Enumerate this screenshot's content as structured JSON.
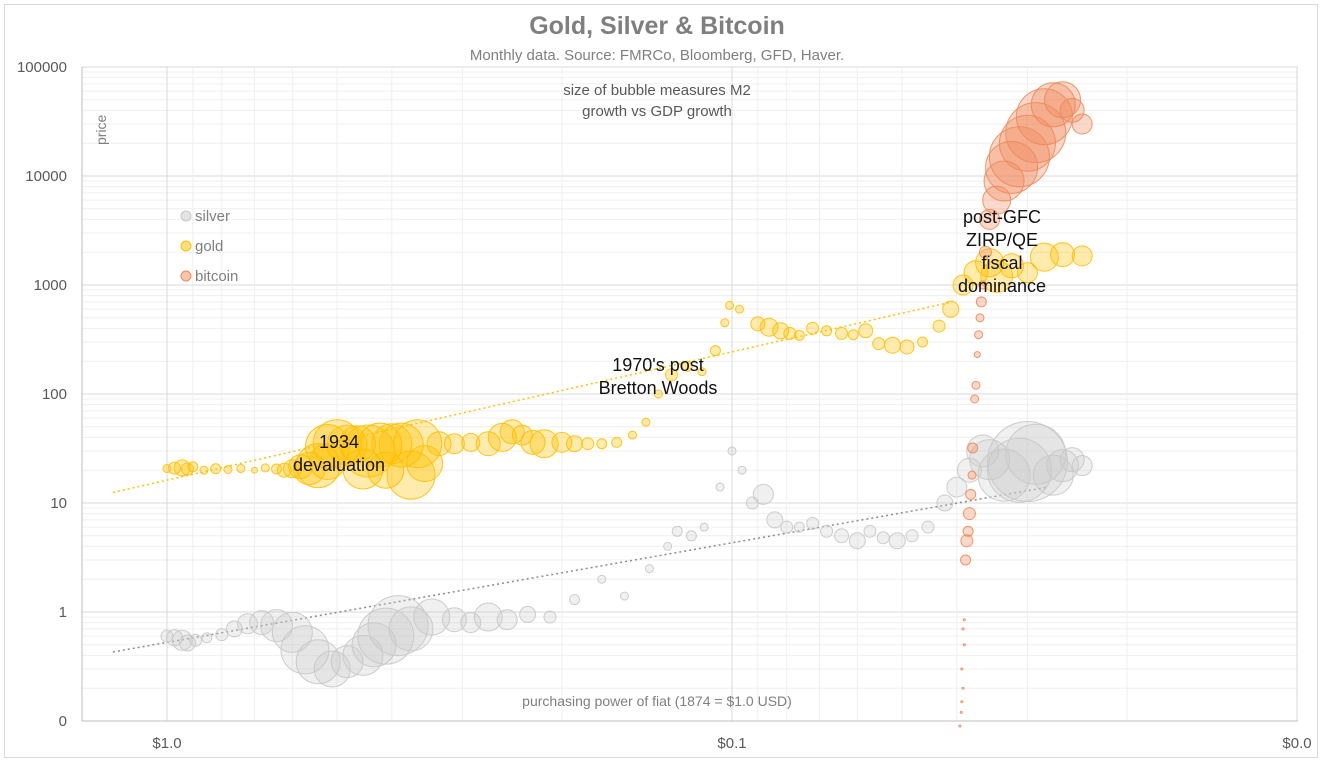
{
  "chart_data": {
    "type": "scatter",
    "title": "Gold, Silver & Bitcoin",
    "subtitle": "Monthly data.  Source: FMRCo, Bloomberg, GFD, Haver.",
    "xlabel": "purchasing power of fiat (1874 = $1.0 USD)",
    "ylabel": "price",
    "x_scale": "log-reversed",
    "y_scale": "log",
    "x_ticks": [
      "$1.0",
      "$0.1",
      "$0.0"
    ],
    "y_ticks": [
      "100000",
      "10000",
      "1000",
      "100",
      "10",
      "1",
      "0"
    ],
    "bubble_note": [
      "size of bubble measures M2",
      "growth vs GDP growth"
    ],
    "legend": [
      {
        "name": "silver",
        "color": "#c8c8c8"
      },
      {
        "name": "gold",
        "color": "#ffc000"
      },
      {
        "name": "bitcoin",
        "color": "#f08a5a"
      }
    ],
    "annotations": [
      {
        "lines": [
          "1934",
          "devaluation"
        ]
      },
      {
        "lines": [
          "1970's post",
          "Bretton Woods"
        ]
      },
      {
        "lines": [
          "post-GFC",
          "ZIRP/QE",
          "fiscal",
          "dominance"
        ]
      }
    ],
    "series": [
      {
        "name": "gold",
        "color": "#ffc000",
        "points": [
          [
            1.0,
            20.7,
            4
          ],
          [
            0.97,
            20.9,
            6
          ],
          [
            0.94,
            21.0,
            8
          ],
          [
            0.92,
            20.5,
            6
          ],
          [
            0.9,
            21.5,
            5
          ],
          [
            0.86,
            20.0,
            4
          ],
          [
            0.82,
            20.6,
            5
          ],
          [
            0.78,
            20.3,
            4
          ],
          [
            0.74,
            20.7,
            4
          ],
          [
            0.7,
            20.0,
            3
          ],
          [
            0.67,
            21.0,
            4
          ],
          [
            0.64,
            20.5,
            5
          ],
          [
            0.62,
            20.0,
            7
          ],
          [
            0.6,
            20.6,
            9
          ],
          [
            0.58,
            21.5,
            12
          ],
          [
            0.56,
            20.7,
            16
          ],
          [
            0.54,
            22.0,
            22
          ],
          [
            0.52,
            24.0,
            18
          ],
          [
            0.52,
            33.0,
            22
          ],
          [
            0.5,
            35.0,
            24
          ],
          [
            0.48,
            34.0,
            20
          ],
          [
            0.46,
            35.0,
            18
          ],
          [
            0.45,
            20.5,
            20
          ],
          [
            0.44,
            30.0,
            26
          ],
          [
            0.42,
            34.0,
            22
          ],
          [
            0.41,
            20.0,
            18
          ],
          [
            0.4,
            35.0,
            20
          ],
          [
            0.385,
            34.0,
            22
          ],
          [
            0.37,
            18.0,
            24
          ],
          [
            0.36,
            35.0,
            24
          ],
          [
            0.35,
            23.0,
            18
          ],
          [
            0.33,
            35.0,
            12
          ],
          [
            0.31,
            35.0,
            10
          ],
          [
            0.29,
            36.0,
            9
          ],
          [
            0.27,
            35.0,
            12
          ],
          [
            0.255,
            40.0,
            14
          ],
          [
            0.245,
            45.0,
            12
          ],
          [
            0.235,
            42.0,
            10
          ],
          [
            0.225,
            36.0,
            12
          ],
          [
            0.215,
            35.0,
            14
          ],
          [
            0.2,
            36.0,
            10
          ],
          [
            0.19,
            35.0,
            8
          ],
          [
            0.18,
            35.0,
            6
          ],
          [
            0.17,
            35.0,
            5
          ],
          [
            0.16,
            36.0,
            5
          ],
          [
            0.15,
            42.0,
            4
          ],
          [
            0.142,
            55.0,
            4
          ],
          [
            0.135,
            100.0,
            4
          ],
          [
            0.128,
            150.0,
            6
          ],
          [
            0.12,
            180.0,
            5
          ],
          [
            0.113,
            160.0,
            4
          ],
          [
            0.107,
            250.0,
            5
          ],
          [
            0.103,
            450.0,
            4
          ],
          [
            0.101,
            650.0,
            4
          ],
          [
            0.097,
            600.0,
            4
          ],
          [
            0.09,
            440.0,
            7
          ],
          [
            0.086,
            410.0,
            9
          ],
          [
            0.082,
            380.0,
            8
          ],
          [
            0.079,
            360.0,
            6
          ],
          [
            0.076,
            345.0,
            5
          ],
          [
            0.072,
            400.0,
            6
          ],
          [
            0.068,
            380.0,
            5
          ],
          [
            0.064,
            360.0,
            6
          ],
          [
            0.061,
            350.0,
            5
          ],
          [
            0.058,
            380.0,
            7
          ],
          [
            0.055,
            290.0,
            6
          ],
          [
            0.052,
            280.0,
            8
          ],
          [
            0.049,
            270.0,
            7
          ],
          [
            0.046,
            300.0,
            5
          ],
          [
            0.043,
            420.0,
            6
          ],
          [
            0.041,
            600.0,
            8
          ],
          [
            0.039,
            1000.0,
            10
          ],
          [
            0.037,
            1300.0,
            12
          ],
          [
            0.035,
            1600.0,
            14
          ],
          [
            0.034,
            1200.0,
            16
          ],
          [
            0.032,
            1500.0,
            12
          ],
          [
            0.03,
            1300.0,
            10
          ],
          [
            0.028,
            1800.0,
            14
          ],
          [
            0.026,
            1900.0,
            12
          ],
          [
            0.024,
            1850.0,
            10
          ]
        ]
      },
      {
        "name": "silver",
        "color": "#c8c8c8",
        "points": [
          [
            1.0,
            0.6,
            6
          ],
          [
            0.97,
            0.58,
            8
          ],
          [
            0.94,
            0.55,
            10
          ],
          [
            0.92,
            0.52,
            8
          ],
          [
            0.89,
            0.55,
            6
          ],
          [
            0.85,
            0.58,
            5
          ],
          [
            0.8,
            0.62,
            6
          ],
          [
            0.76,
            0.7,
            8
          ],
          [
            0.72,
            0.78,
            10
          ],
          [
            0.68,
            0.8,
            12
          ],
          [
            0.64,
            0.75,
            16
          ],
          [
            0.6,
            0.65,
            20
          ],
          [
            0.57,
            0.45,
            24
          ],
          [
            0.54,
            0.35,
            22
          ],
          [
            0.51,
            0.3,
            18
          ],
          [
            0.48,
            0.35,
            16
          ],
          [
            0.45,
            0.4,
            20
          ],
          [
            0.43,
            0.5,
            22
          ],
          [
            0.41,
            0.6,
            28
          ],
          [
            0.39,
            0.75,
            30
          ],
          [
            0.37,
            0.7,
            22
          ],
          [
            0.34,
            0.9,
            18
          ],
          [
            0.31,
            0.85,
            12
          ],
          [
            0.29,
            0.8,
            10
          ],
          [
            0.27,
            0.9,
            14
          ],
          [
            0.25,
            0.85,
            10
          ],
          [
            0.23,
            0.95,
            8
          ],
          [
            0.21,
            0.9,
            6
          ],
          [
            0.19,
            1.3,
            5
          ],
          [
            0.17,
            2.0,
            4
          ],
          [
            0.155,
            1.4,
            4
          ],
          [
            0.14,
            2.5,
            4
          ],
          [
            0.13,
            4.0,
            4
          ],
          [
            0.125,
            5.5,
            5
          ],
          [
            0.118,
            5.0,
            5
          ],
          [
            0.112,
            6.0,
            4
          ],
          [
            0.105,
            14.0,
            4
          ],
          [
            0.1,
            30.0,
            4
          ],
          [
            0.096,
            20.0,
            4
          ],
          [
            0.092,
            10.0,
            6
          ],
          [
            0.088,
            12.0,
            10
          ],
          [
            0.084,
            7.0,
            8
          ],
          [
            0.08,
            6.0,
            6
          ],
          [
            0.076,
            6.0,
            5
          ],
          [
            0.072,
            6.5,
            6
          ],
          [
            0.068,
            5.5,
            6
          ],
          [
            0.064,
            5.0,
            7
          ],
          [
            0.06,
            4.5,
            8
          ],
          [
            0.057,
            5.5,
            6
          ],
          [
            0.054,
            4.8,
            6
          ],
          [
            0.051,
            4.5,
            8
          ],
          [
            0.048,
            5.0,
            6
          ],
          [
            0.045,
            6.0,
            6
          ],
          [
            0.042,
            10.0,
            8
          ],
          [
            0.04,
            14.0,
            10
          ],
          [
            0.038,
            20.0,
            12
          ],
          [
            0.036,
            30.0,
            16
          ],
          [
            0.035,
            25.0,
            20
          ],
          [
            0.033,
            18.0,
            26
          ],
          [
            0.031,
            20.0,
            32
          ],
          [
            0.03,
            24.0,
            40
          ],
          [
            0.029,
            28.0,
            30
          ],
          [
            0.027,
            18.0,
            20
          ],
          [
            0.026,
            22.0,
            16
          ],
          [
            0.025,
            25.0,
            12
          ],
          [
            0.024,
            22.0,
            10
          ]
        ]
      },
      {
        "name": "bitcoin",
        "color": "#f08a5a",
        "points": [
          [
            0.0395,
            0.09,
            1
          ],
          [
            0.0393,
            0.12,
            1
          ],
          [
            0.0392,
            0.15,
            1
          ],
          [
            0.039,
            0.2,
            1
          ],
          [
            0.0392,
            0.3,
            1
          ],
          [
            0.0388,
            0.5,
            1
          ],
          [
            0.039,
            0.7,
            1
          ],
          [
            0.0388,
            0.85,
            1
          ],
          [
            0.0386,
            3.0,
            5
          ],
          [
            0.0384,
            4.5,
            6
          ],
          [
            0.0382,
            5.5,
            5
          ],
          [
            0.038,
            8.0,
            6
          ],
          [
            0.0378,
            12.0,
            5
          ],
          [
            0.0376,
            18.0,
            4
          ],
          [
            0.0375,
            32.0,
            5
          ],
          [
            0.0372,
            90.0,
            4
          ],
          [
            0.037,
            120.0,
            4
          ],
          [
            0.0368,
            230.0,
            3
          ],
          [
            0.0366,
            350.0,
            4
          ],
          [
            0.0364,
            500.0,
            4
          ],
          [
            0.0362,
            700.0,
            5
          ],
          [
            0.036,
            1000.0,
            4
          ],
          [
            0.0356,
            2000.0,
            6
          ],
          [
            0.035,
            4000.0,
            10
          ],
          [
            0.034,
            6000.0,
            14
          ],
          [
            0.033,
            9000.0,
            20
          ],
          [
            0.032,
            12000.0,
            26
          ],
          [
            0.031,
            15000.0,
            30
          ],
          [
            0.03,
            20000.0,
            28
          ],
          [
            0.029,
            25000.0,
            30
          ],
          [
            0.028,
            35000.0,
            28
          ],
          [
            0.027,
            45000.0,
            22
          ],
          [
            0.026,
            50000.0,
            18
          ],
          [
            0.025,
            40000.0,
            12
          ],
          [
            0.024,
            30000.0,
            10
          ]
        ]
      }
    ]
  }
}
